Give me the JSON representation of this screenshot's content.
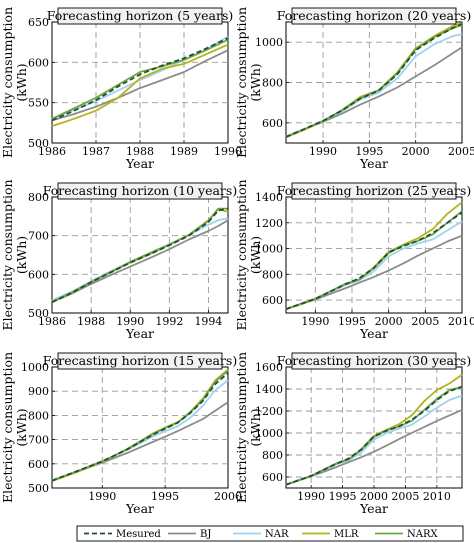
{
  "colors": {
    "Mesured": "#1f4e3d",
    "BJ": "#8c8c8c",
    "NAR": "#9fd4f0",
    "MLR": "#b5b21e",
    "NARX": "#6da83d",
    "grid": "#9a9a9a",
    "title_bg": "#f2f2f2"
  },
  "legend": {
    "placement": "bottom",
    "entries": [
      {
        "label": "Mesured",
        "style": "dashed"
      },
      {
        "label": "BJ",
        "style": "solid"
      },
      {
        "label": "NAR",
        "style": "solid"
      },
      {
        "label": "MLR",
        "style": "solid"
      },
      {
        "label": "NARX",
        "style": "solid"
      }
    ]
  },
  "chart_data": [
    {
      "type": "line",
      "title": "Forecasting horizon (5 years)",
      "xlabel": "Year",
      "ylabel": "Electricity consumption (kWh)",
      "xlim": [
        1986,
        1990
      ],
      "ylim": [
        500,
        650
      ],
      "xticks": [
        1986,
        1987,
        1988,
        1989,
        1990
      ],
      "yticks": [
        500,
        550,
        600,
        650
      ],
      "grid": true,
      "series": [
        {
          "name": "Mesured",
          "x": [
            1986,
            1986.5,
            1987,
            1987.5,
            1988,
            1988.5,
            1989,
            1989.5,
            1990
          ],
          "y": [
            528,
            540,
            553,
            570,
            585,
            596,
            605,
            617,
            630
          ]
        },
        {
          "name": "BJ",
          "x": [
            1986,
            1986.5,
            1987,
            1987.5,
            1988,
            1988.5,
            1989,
            1989.5,
            1990
          ],
          "y": [
            528,
            536,
            545,
            556,
            568,
            578,
            588,
            602,
            615
          ]
        },
        {
          "name": "NAR",
          "x": [
            1986,
            1986.5,
            1987,
            1987.5,
            1988,
            1988.5,
            1989,
            1989.5,
            1990
          ],
          "y": [
            530,
            541,
            552,
            565,
            578,
            590,
            603,
            616,
            632
          ]
        },
        {
          "name": "MLR",
          "x": [
            1986,
            1986.5,
            1987,
            1987.5,
            1988,
            1988.5,
            1989,
            1989.5,
            1990
          ],
          "y": [
            521,
            530,
            540,
            556,
            580,
            592,
            598,
            610,
            622
          ]
        },
        {
          "name": "NARX",
          "x": [
            1986,
            1986.5,
            1987,
            1987.5,
            1988,
            1988.5,
            1989,
            1989.5,
            1990
          ],
          "y": [
            530,
            543,
            556,
            572,
            588,
            595,
            603,
            615,
            628
          ]
        }
      ]
    },
    {
      "type": "line",
      "title": "Forecasting horizon (20 years)",
      "xlabel": "Year",
      "ylabel": "Electricity consumption (kWh)",
      "xlim": [
        1986,
        2005
      ],
      "ylim": [
        500,
        1100
      ],
      "xticks": [
        1990,
        1995,
        2000,
        2005
      ],
      "yticks": [
        600,
        800,
        1000
      ],
      "grid": true,
      "series": [
        {
          "name": "Mesured",
          "x": [
            1986,
            1988,
            1990,
            1992,
            1994,
            1996,
            1998,
            2000,
            2002,
            2004,
            2005
          ],
          "y": [
            530,
            570,
            610,
            660,
            720,
            760,
            840,
            960,
            1020,
            1070,
            1090
          ]
        },
        {
          "name": "BJ",
          "x": [
            1986,
            1988,
            1990,
            1992,
            1994,
            1996,
            1998,
            2000,
            2002,
            2004,
            2005
          ],
          "y": [
            530,
            568,
            605,
            645,
            690,
            730,
            775,
            830,
            885,
            945,
            975
          ]
        },
        {
          "name": "NAR",
          "x": [
            1986,
            1988,
            1990,
            1992,
            1994,
            1996,
            1998,
            2000,
            2002,
            2004,
            2005
          ],
          "y": [
            532,
            570,
            610,
            655,
            715,
            750,
            820,
            930,
            990,
            1030,
            1040
          ]
        },
        {
          "name": "MLR",
          "x": [
            1986,
            1988,
            1990,
            1992,
            1994,
            1996,
            1998,
            2000,
            2002,
            2004,
            2005
          ],
          "y": [
            528,
            566,
            608,
            662,
            728,
            762,
            850,
            970,
            1030,
            1080,
            1095
          ]
        },
        {
          "name": "NARX",
          "x": [
            1986,
            1988,
            1990,
            1992,
            1994,
            1996,
            1998,
            2000,
            2002,
            2004,
            2005
          ],
          "y": [
            531,
            569,
            610,
            660,
            722,
            760,
            845,
            965,
            1025,
            1070,
            1085
          ]
        }
      ]
    },
    {
      "type": "line",
      "title": "Forecasting horizon (10 years)",
      "xlabel": "Year",
      "ylabel": "Electricity consumption (kWh)",
      "xlim": [
        1986,
        1995
      ],
      "ylim": [
        500,
        800
      ],
      "xticks": [
        1986,
        1988,
        1990,
        1992,
        1994
      ],
      "yticks": [
        500,
        600,
        700,
        800
      ],
      "grid": true,
      "series": [
        {
          "name": "Mesured",
          "x": [
            1986,
            1987,
            1988,
            1989,
            1990,
            1991,
            1992,
            1993,
            1994,
            1994.5,
            1995
          ],
          "y": [
            528,
            552,
            580,
            605,
            630,
            652,
            675,
            700,
            735,
            765,
            770
          ]
        },
        {
          "name": "BJ",
          "x": [
            1986,
            1987,
            1988,
            1989,
            1990,
            1991,
            1992,
            1993,
            1994,
            1994.5,
            1995
          ],
          "y": [
            528,
            550,
            575,
            598,
            620,
            642,
            665,
            690,
            712,
            725,
            740
          ]
        },
        {
          "name": "NAR",
          "x": [
            1986,
            1987,
            1988,
            1989,
            1990,
            1991,
            1992,
            1993,
            1994,
            1994.5,
            1995
          ],
          "y": [
            532,
            555,
            582,
            608,
            632,
            655,
            678,
            702,
            728,
            740,
            745
          ]
        },
        {
          "name": "MLR",
          "x": [
            1986,
            1987,
            1988,
            1989,
            1990,
            1991,
            1992,
            1993,
            1994,
            1994.5,
            1995
          ],
          "y": [
            530,
            553,
            580,
            605,
            630,
            652,
            676,
            702,
            740,
            768,
            762
          ]
        },
        {
          "name": "NARX",
          "x": [
            1986,
            1987,
            1988,
            1989,
            1990,
            1991,
            1992,
            1993,
            1994,
            1994.5,
            1995
          ],
          "y": [
            529,
            552,
            580,
            606,
            632,
            655,
            677,
            702,
            738,
            770,
            770
          ]
        }
      ]
    },
    {
      "type": "line",
      "title": "Forecasting horizon (25 years)",
      "xlabel": "Year",
      "ylabel": "Electricity consumption (kWh)",
      "xlim": [
        1986,
        2010
      ],
      "ylim": [
        500,
        1400
      ],
      "xticks": [
        1990,
        1995,
        2000,
        2005,
        2010
      ],
      "yticks": [
        600,
        800,
        1000,
        1200,
        1400
      ],
      "grid": true,
      "series": [
        {
          "name": "Mesured",
          "x": [
            1986,
            1990,
            1994,
            1996,
            1998,
            2000,
            2002,
            2004,
            2006,
            2008,
            2010
          ],
          "y": [
            530,
            610,
            720,
            770,
            850,
            970,
            1020,
            1060,
            1120,
            1200,
            1280
          ]
        },
        {
          "name": "BJ",
          "x": [
            1986,
            1990,
            1994,
            1996,
            1998,
            2000,
            2002,
            2004,
            2006,
            2008,
            2010
          ],
          "y": [
            530,
            605,
            690,
            735,
            780,
            830,
            885,
            945,
            1000,
            1055,
            1100
          ]
        },
        {
          "name": "NAR",
          "x": [
            1986,
            1990,
            1994,
            1996,
            1998,
            2000,
            2002,
            2004,
            2006,
            2008,
            2010
          ],
          "y": [
            532,
            612,
            715,
            752,
            825,
            940,
            1000,
            1040,
            1070,
            1140,
            1210
          ]
        },
        {
          "name": "MLR",
          "x": [
            1986,
            1990,
            1994,
            1996,
            1998,
            2000,
            2002,
            2004,
            2006,
            2008,
            2010
          ],
          "y": [
            528,
            608,
            725,
            762,
            855,
            975,
            1030,
            1080,
            1150,
            1270,
            1360
          ]
        },
        {
          "name": "NARX",
          "x": [
            1986,
            1990,
            1994,
            1996,
            1998,
            2000,
            2002,
            2004,
            2006,
            2008,
            2010
          ],
          "y": [
            531,
            610,
            722,
            760,
            848,
            965,
            1025,
            1060,
            1110,
            1200,
            1290
          ]
        }
      ]
    },
    {
      "type": "line",
      "title": "Forecasting horizon (15 years)",
      "xlabel": "Year",
      "ylabel": "Electricity consumption (kWh)",
      "xlim": [
        1986,
        2000
      ],
      "ylim": [
        500,
        1000
      ],
      "xticks": [
        1990,
        1995,
        2000
      ],
      "yticks": [
        500,
        600,
        700,
        800,
        900,
        1000
      ],
      "grid": true,
      "series": [
        {
          "name": "Mesured",
          "x": [
            1986,
            1988,
            1990,
            1992,
            1994,
            1995,
            1996,
            1997,
            1998,
            1999,
            2000
          ],
          "y": [
            530,
            570,
            610,
            660,
            720,
            745,
            770,
            810,
            860,
            930,
            975
          ]
        },
        {
          "name": "BJ",
          "x": [
            1986,
            1988,
            1990,
            1992,
            1994,
            1995,
            1996,
            1997,
            1998,
            1999,
            2000
          ],
          "y": [
            530,
            568,
            605,
            645,
            690,
            712,
            735,
            760,
            785,
            820,
            855
          ]
        },
        {
          "name": "NAR",
          "x": [
            1986,
            1988,
            1990,
            1992,
            1994,
            1995,
            1996,
            1997,
            1998,
            1999,
            2000
          ],
          "y": [
            532,
            570,
            612,
            658,
            712,
            735,
            755,
            790,
            840,
            905,
            945
          ]
        },
        {
          "name": "MLR",
          "x": [
            1986,
            1988,
            1990,
            1992,
            1994,
            1995,
            1996,
            1997,
            1998,
            1999,
            2000
          ],
          "y": [
            528,
            566,
            608,
            662,
            725,
            750,
            772,
            815,
            870,
            945,
            990
          ]
        },
        {
          "name": "NARX",
          "x": [
            1986,
            1988,
            1990,
            1992,
            1994,
            1995,
            1996,
            1997,
            1998,
            1999,
            2000
          ],
          "y": [
            531,
            569,
            610,
            660,
            722,
            748,
            770,
            812,
            865,
            940,
            985
          ]
        }
      ]
    },
    {
      "type": "line",
      "title": "Forecasting horizon (30 years)",
      "xlabel": "Year",
      "ylabel": "Electricity consumption (kWh)",
      "xlim": [
        1986,
        2014
      ],
      "ylim": [
        500,
        1600
      ],
      "xticks": [
        1990,
        1995,
        2000,
        2005,
        2010
      ],
      "yticks": [
        600,
        800,
        1000,
        1200,
        1400,
        1600
      ],
      "grid": true,
      "series": [
        {
          "name": "Mesured",
          "x": [
            1986,
            1990,
            1994,
            1996,
            1998,
            2000,
            2002,
            2004,
            2006,
            2008,
            2010,
            2012,
            2014
          ],
          "y": [
            530,
            610,
            720,
            770,
            850,
            970,
            1020,
            1060,
            1120,
            1200,
            1300,
            1380,
            1420
          ]
        },
        {
          "name": "BJ",
          "x": [
            1986,
            1990,
            1994,
            1996,
            1998,
            2000,
            2002,
            2004,
            2006,
            2008,
            2010,
            2012,
            2014
          ],
          "y": [
            530,
            605,
            690,
            735,
            780,
            830,
            885,
            945,
            1000,
            1055,
            1110,
            1160,
            1210
          ]
        },
        {
          "name": "NAR",
          "x": [
            1986,
            1990,
            1994,
            1996,
            1998,
            2000,
            2002,
            2004,
            2006,
            2008,
            2010,
            2012,
            2014
          ],
          "y": [
            532,
            612,
            715,
            752,
            825,
            940,
            1000,
            1040,
            1075,
            1150,
            1230,
            1300,
            1340
          ]
        },
        {
          "name": "MLR",
          "x": [
            1986,
            1990,
            1994,
            1996,
            1998,
            2000,
            2002,
            2004,
            2006,
            2008,
            2010,
            2012,
            2014
          ],
          "y": [
            528,
            608,
            725,
            762,
            855,
            975,
            1030,
            1080,
            1160,
            1290,
            1390,
            1450,
            1530
          ]
        },
        {
          "name": "NARX",
          "x": [
            1986,
            1990,
            1994,
            1996,
            1998,
            2000,
            2002,
            2004,
            2006,
            2008,
            2010,
            2012,
            2014
          ],
          "y": [
            531,
            610,
            722,
            760,
            848,
            965,
            1025,
            1060,
            1110,
            1210,
            1310,
            1390,
            1420
          ]
        }
      ]
    }
  ]
}
